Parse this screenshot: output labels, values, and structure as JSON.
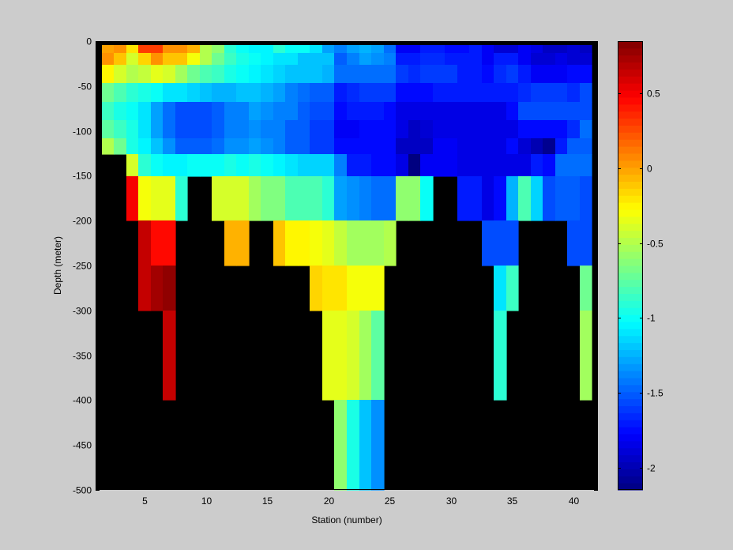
{
  "chart_data": {
    "type": "heatmap",
    "title": "",
    "xlabel": "Station (number)",
    "ylabel": "Depth (meter)",
    "xlim": [
      1,
      42
    ],
    "ylim": [
      -500,
      0
    ],
    "xticks": [
      5,
      10,
      15,
      20,
      25,
      30,
      35,
      40
    ],
    "yticks": [
      0,
      -50,
      -100,
      -150,
      -200,
      -250,
      -300,
      -350,
      -400,
      -450,
      -500
    ],
    "xtick_labels": [
      "5",
      "10",
      "15",
      "20",
      "25",
      "30",
      "35",
      "40"
    ],
    "ytick_labels": [
      "0",
      "-50",
      "-100",
      "-150",
      "-200",
      "-250",
      "-300",
      "-350",
      "-400",
      "-450",
      "-500"
    ],
    "colorbar": {
      "colormap": "jet",
      "range": [
        -2.15,
        0.85
      ],
      "ticks": [
        0.5,
        0,
        -0.5,
        -1,
        -1.5,
        -2
      ],
      "tick_labels": [
        "0.5",
        "0",
        "-0.5",
        "-1",
        "-1.5",
        "-2"
      ]
    },
    "stations": [
      2,
      3,
      4,
      5,
      6,
      7,
      8,
      9,
      10,
      11,
      12,
      13,
      14,
      15,
      16,
      17,
      18,
      19,
      20,
      21,
      22,
      23,
      24,
      25,
      26,
      27,
      28,
      29,
      30,
      31,
      32,
      33,
      34,
      35,
      36,
      37,
      38,
      39,
      40,
      41
    ],
    "depth_bins": [
      "0",
      "-15",
      "-25",
      "-50",
      "-75",
      "-100",
      "-125",
      "-150",
      "-200",
      "-250",
      "-300",
      "-400",
      "-500"
    ],
    "no_data_color": "#000000",
    "values": [
      [
        0.0,
        0.05,
        -0.2,
        0.3,
        0.3,
        0.05,
        0.05,
        -0.05,
        -0.5,
        -0.6,
        -0.9,
        -1.0,
        -1.05,
        -1.05,
        -0.9,
        -1.0,
        -1.0,
        -1.1,
        -1.3,
        -1.4,
        -1.3,
        -1.25,
        -1.3,
        -1.45,
        -1.8,
        -1.8,
        -1.7,
        -1.7,
        -1.75,
        -1.75,
        -1.7,
        -1.8,
        -1.9,
        -1.9,
        -1.8,
        -1.85,
        -1.95,
        -1.95,
        -1.9,
        -1.95
      ],
      [
        0.05,
        -0.1,
        -0.4,
        -0.15,
        0.05,
        -0.1,
        -0.1,
        -0.3,
        -0.5,
        -0.7,
        -0.85,
        -0.95,
        -1.0,
        -1.05,
        -1.1,
        -1.1,
        -1.2,
        -1.2,
        -1.2,
        -1.5,
        -1.4,
        -1.3,
        -1.35,
        -1.4,
        -1.7,
        -1.7,
        -1.65,
        -1.65,
        -1.7,
        -1.7,
        -1.7,
        -1.8,
        -1.7,
        -1.7,
        -1.8,
        -1.9,
        -1.9,
        -1.85,
        -1.9,
        -1.9
      ],
      [
        -0.25,
        -0.4,
        -0.5,
        -0.45,
        -0.35,
        -0.4,
        -0.55,
        -0.7,
        -0.8,
        -0.85,
        -0.95,
        -1.0,
        -1.05,
        -1.1,
        -1.15,
        -1.2,
        -1.2,
        -1.2,
        -1.25,
        -1.45,
        -1.45,
        -1.45,
        -1.45,
        -1.45,
        -1.6,
        -1.65,
        -1.6,
        -1.6,
        -1.6,
        -1.7,
        -1.7,
        -1.75,
        -1.65,
        -1.6,
        -1.7,
        -1.8,
        -1.8,
        -1.8,
        -1.75,
        -1.75
      ],
      [
        -0.7,
        -0.8,
        -0.9,
        -0.95,
        -1.0,
        -1.1,
        -1.1,
        -1.15,
        -1.2,
        -1.25,
        -1.25,
        -1.2,
        -1.2,
        -1.25,
        -1.3,
        -1.4,
        -1.45,
        -1.5,
        -1.5,
        -1.7,
        -1.65,
        -1.6,
        -1.6,
        -1.6,
        -1.75,
        -1.75,
        -1.75,
        -1.7,
        -1.7,
        -1.7,
        -1.7,
        -1.7,
        -1.7,
        -1.7,
        -1.65,
        -1.6,
        -1.6,
        -1.6,
        -1.65,
        -1.55
      ],
      [
        -0.85,
        -0.95,
        -1.0,
        -1.1,
        -1.3,
        -1.45,
        -1.55,
        -1.55,
        -1.55,
        -1.5,
        -1.4,
        -1.4,
        -1.3,
        -1.35,
        -1.4,
        -1.4,
        -1.5,
        -1.55,
        -1.55,
        -1.75,
        -1.7,
        -1.7,
        -1.7,
        -1.75,
        -1.85,
        -1.85,
        -1.85,
        -1.85,
        -1.85,
        -1.85,
        -1.85,
        -1.85,
        -1.85,
        -1.75,
        -1.55,
        -1.55,
        -1.55,
        -1.55,
        -1.55,
        -1.55
      ],
      [
        -0.75,
        -0.85,
        -0.95,
        -1.1,
        -1.3,
        -1.45,
        -1.55,
        -1.55,
        -1.55,
        -1.5,
        -1.4,
        -1.4,
        -1.35,
        -1.4,
        -1.4,
        -1.5,
        -1.5,
        -1.6,
        -1.6,
        -1.8,
        -1.8,
        -1.75,
        -1.75,
        -1.75,
        -1.85,
        -1.95,
        -1.9,
        -1.85,
        -1.85,
        -1.85,
        -1.85,
        -1.85,
        -1.85,
        -1.85,
        -1.75,
        -1.75,
        -1.75,
        -1.75,
        -1.65,
        -1.45
      ],
      [
        -0.5,
        -0.7,
        -0.95,
        -1.05,
        -1.2,
        -1.35,
        -1.5,
        -1.5,
        -1.5,
        -1.45,
        -1.35,
        -1.35,
        -1.3,
        -1.35,
        -1.4,
        -1.5,
        -1.5,
        -1.6,
        -1.6,
        -1.75,
        -1.75,
        -1.75,
        -1.75,
        -1.75,
        -1.95,
        -1.95,
        -1.95,
        -1.8,
        -1.8,
        -1.85,
        -1.85,
        -1.85,
        -1.85,
        -1.75,
        -1.9,
        -2.0,
        -2.1,
        -1.7,
        -1.5,
        -1.5
      ],
      [
        null,
        null,
        -0.4,
        -0.9,
        -1.0,
        -1.05,
        -1.05,
        -1.0,
        -1.0,
        -1.0,
        -0.95,
        -1.0,
        -0.95,
        -1.0,
        -1.05,
        -1.1,
        -1.15,
        -1.15,
        -1.15,
        -1.4,
        -1.7,
        -1.7,
        -1.75,
        -1.75,
        -1.85,
        -2.15,
        -1.8,
        -1.8,
        -1.8,
        -1.85,
        -1.85,
        -1.85,
        -1.85,
        -1.85,
        -1.85,
        -1.7,
        -1.75,
        -1.45,
        -1.45,
        -1.45
      ],
      [
        null,
        null,
        0.5,
        -0.3,
        -0.35,
        -0.35,
        -0.9,
        null,
        null,
        -0.4,
        -0.4,
        -0.4,
        -0.55,
        -0.65,
        -0.65,
        -0.8,
        -0.8,
        -0.8,
        -0.9,
        -1.3,
        -1.35,
        -1.4,
        -1.45,
        -1.45,
        -0.6,
        -0.6,
        -1.0,
        null,
        null,
        -1.7,
        -1.7,
        -1.85,
        -1.75,
        -1.25,
        -0.8,
        -1.15,
        -1.55,
        -1.5,
        -1.5,
        -1.55
      ],
      [
        null,
        null,
        null,
        0.65,
        0.45,
        0.45,
        null,
        null,
        null,
        null,
        -0.05,
        -0.05,
        null,
        null,
        -0.1,
        -0.25,
        -0.25,
        -0.3,
        -0.35,
        -0.45,
        -0.55,
        -0.55,
        -0.55,
        -0.5,
        null,
        null,
        null,
        null,
        null,
        null,
        null,
        -1.55,
        -1.55,
        -1.55,
        null,
        null,
        null,
        null,
        -1.55,
        -1.55
      ],
      [
        null,
        null,
        null,
        0.65,
        0.75,
        0.8,
        null,
        null,
        null,
        null,
        null,
        null,
        null,
        null,
        null,
        null,
        null,
        -0.15,
        -0.2,
        -0.2,
        -0.3,
        -0.3,
        -0.3,
        null,
        null,
        null,
        null,
        null,
        null,
        null,
        null,
        null,
        -1.1,
        -0.85,
        null,
        null,
        null,
        null,
        null,
        -0.7
      ],
      [
        null,
        null,
        null,
        null,
        null,
        0.65,
        null,
        null,
        null,
        null,
        null,
        null,
        null,
        null,
        null,
        null,
        null,
        null,
        -0.35,
        -0.35,
        -0.4,
        -0.55,
        -0.75,
        null,
        null,
        null,
        null,
        null,
        null,
        null,
        null,
        null,
        -0.9,
        null,
        null,
        null,
        null,
        null,
        null,
        -0.55
      ],
      [
        null,
        null,
        null,
        null,
        null,
        null,
        null,
        null,
        null,
        null,
        null,
        null,
        null,
        null,
        null,
        null,
        null,
        null,
        null,
        -0.6,
        -0.95,
        -1.2,
        -1.35,
        null,
        null,
        null,
        null,
        null,
        null,
        null,
        null,
        null,
        null,
        null,
        null,
        null,
        null,
        null,
        null,
        null
      ]
    ]
  }
}
